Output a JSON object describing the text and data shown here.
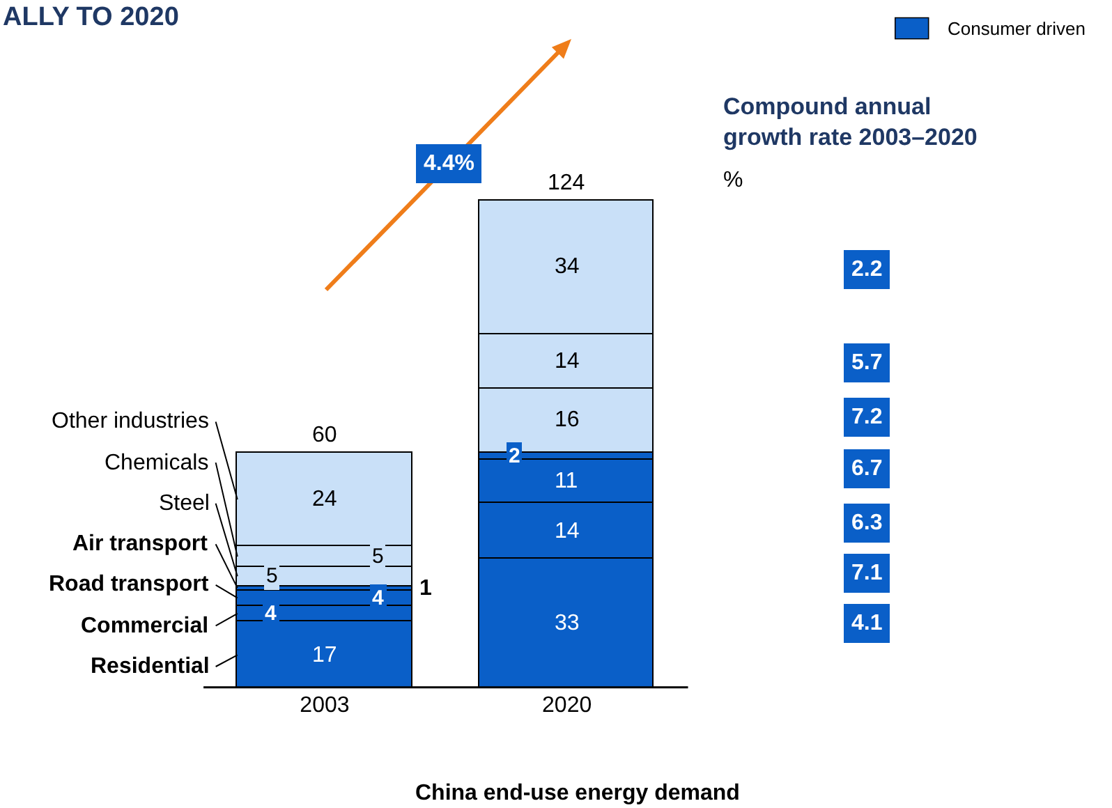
{
  "chart_data": {
    "type": "bar",
    "stacked": true,
    "title": "ALLY TO 2020",
    "xlabel": "China end-use energy demand",
    "categories": [
      "2003",
      "2020"
    ],
    "series": [
      {
        "name": "Residential",
        "color": "#0a5fc8",
        "values": [
          17,
          33
        ]
      },
      {
        "name": "Commercial",
        "color": "#0a5fc8",
        "values": [
          4,
          14
        ]
      },
      {
        "name": "Road transport",
        "color": "#0a5fc8",
        "values": [
          4,
          11
        ]
      },
      {
        "name": "Air transport",
        "color": "#0a5fc8",
        "values": [
          1,
          2
        ]
      },
      {
        "name": "Steel",
        "color": "#c9e0f8",
        "values": [
          5,
          16
        ]
      },
      {
        "name": "Chemicals",
        "color": "#c9e0f8",
        "values": [
          5,
          14
        ]
      },
      {
        "name": "Other industries",
        "color": "#c9e0f8",
        "values": [
          24,
          34
        ]
      }
    ],
    "data_labels": true,
    "totals": [
      "60",
      "124"
    ],
    "annotations": [
      "Consumer driven",
      "Compound annual growth rate 2003–2020",
      "%",
      "4.4%",
      "4.1",
      "7.1",
      "6.3",
      "6.7",
      "7.2",
      "5.7",
      "2.2"
    ],
    "legend": "left"
  }
}
